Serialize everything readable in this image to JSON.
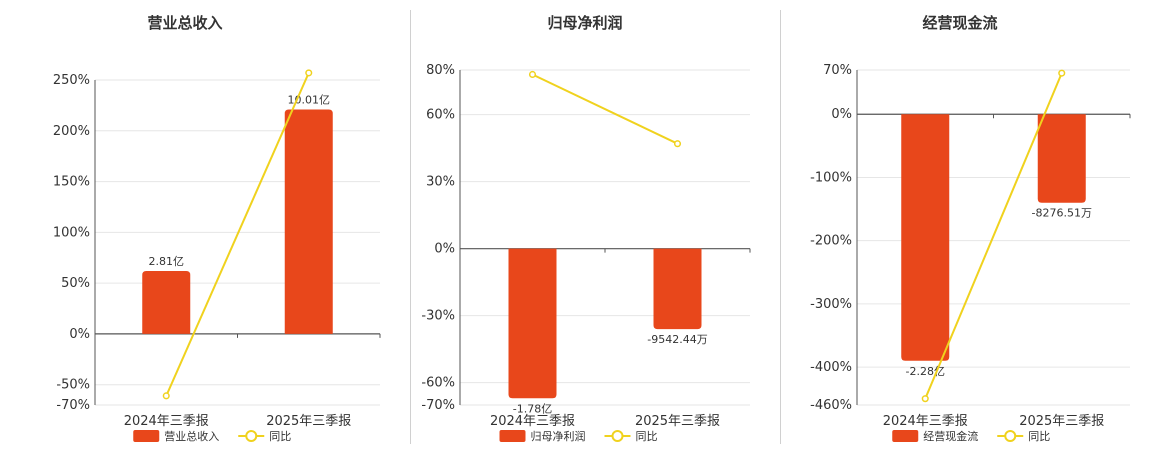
{
  "colors": {
    "bar": "#e8471b",
    "line": "#f0d21e",
    "grid": "#e6e6e6",
    "axis": "#555555"
  },
  "chart_data": [
    {
      "type": "bar+line",
      "title": "营业总收入",
      "categories": [
        "2024年三季报",
        "2025年三季报"
      ],
      "ylim": [
        -70,
        250
      ],
      "yticks": [
        250,
        200,
        150,
        100,
        50,
        0,
        -50,
        -70
      ],
      "yticks_labels": [
        "250%",
        "200%",
        "150%",
        "100%",
        "50%",
        "0%",
        "-50%",
        "-70%"
      ],
      "bar_series": {
        "name": "营业总收入",
        "values": [
          2.81,
          10.01
        ],
        "labels": [
          "2.81亿",
          "10.01亿"
        ]
      },
      "bar_pct_scale": [
        62,
        221
      ],
      "line_series": {
        "name": "同比",
        "values": [
          -61,
          257
        ]
      },
      "legend": [
        "营业总收入",
        "同比"
      ]
    },
    {
      "type": "bar+line",
      "title": "归母净利润",
      "categories": [
        "2024年三季报",
        "2025年三季报"
      ],
      "ylim": [
        -70,
        80
      ],
      "yticks": [
        80,
        60,
        30,
        0,
        -30,
        -60,
        -70
      ],
      "yticks_labels": [
        "80%",
        "60%",
        "30%",
        "0%",
        "-30%",
        "-60%",
        "-70%"
      ],
      "bar_series": {
        "name": "归母净利润",
        "values": [
          -1.78,
          -0.954244
        ],
        "labels": [
          "-1.78亿",
          "-9542.44万"
        ]
      },
      "bar_pct_scale": [
        -67,
        -36
      ],
      "line_series": {
        "name": "同比",
        "values": [
          78,
          47
        ]
      },
      "legend": [
        "归母净利润",
        "同比"
      ]
    },
    {
      "type": "bar+line",
      "title": "经营现金流",
      "categories": [
        "2024年三季报",
        "2025年三季报"
      ],
      "ylim": [
        -460,
        70
      ],
      "yticks": [
        70,
        0,
        -100,
        -200,
        -300,
        -400,
        -460
      ],
      "yticks_labels": [
        "70%",
        "0%",
        "-100%",
        "-200%",
        "-300%",
        "-400%",
        "-460%"
      ],
      "bar_series": {
        "name": "经营现金流",
        "values": [
          -2.28,
          -0.827651
        ],
        "labels": [
          "-2.28亿",
          "-8276.51万"
        ]
      },
      "bar_pct_scale": [
        -390,
        -140
      ],
      "line_series": {
        "name": "同比",
        "values": [
          -450,
          65
        ]
      },
      "legend": [
        "经营现金流",
        "同比"
      ]
    }
  ]
}
